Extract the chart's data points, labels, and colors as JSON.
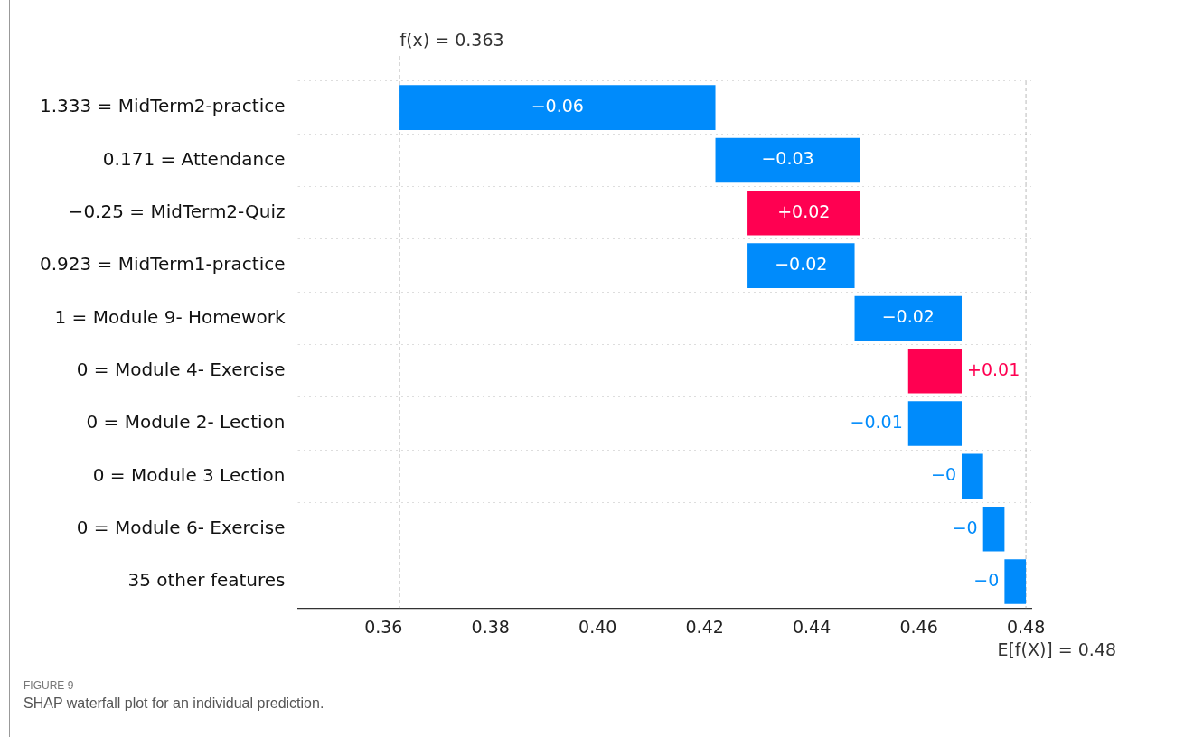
{
  "chart_data": {
    "type": "bar",
    "orientation": "horizontal",
    "categories": [
      "1.333 = MidTerm2-practice",
      "0.171 = Attendance",
      "−0.25 = MidTerm2-Quiz",
      "0.923 = MidTerm1-practice",
      "1 = Module 9- Homework",
      "0 = Module 4- Exercise",
      "0 = Module 2- Lection",
      "0 = Module 3 Lection",
      "0 = Module 6- Exercise",
      "35 other features"
    ],
    "values": [
      -0.059,
      -0.027,
      0.021,
      -0.02,
      -0.02,
      0.01,
      -0.01,
      -0.004,
      -0.004,
      -0.004
    ],
    "base": [
      0.422,
      0.449,
      0.428,
      0.448,
      0.468,
      0.458,
      0.468,
      0.472,
      0.476,
      0.48
    ],
    "colors": [
      "#008bfb",
      "#008bfb",
      "#ff0051",
      "#008bfb",
      "#008bfb",
      "#ff0051",
      "#008bfb",
      "#008bfb",
      "#008bfb",
      "#008bfb"
    ],
    "value_labels": [
      "−0.06",
      "−0.03",
      "+0.02",
      "−0.02",
      "−0.02",
      "+0.01",
      "−0.01",
      "−0",
      "−0",
      "−0"
    ],
    "xlim": [
      0.344,
      0.481
    ],
    "xticks": [
      {
        "value": 0.36,
        "label": "0.36"
      },
      {
        "value": 0.38,
        "label": "0.38"
      },
      {
        "value": 0.4,
        "label": "0.40"
      },
      {
        "value": 0.42,
        "label": "0.42"
      },
      {
        "value": 0.44,
        "label": "0.44"
      },
      {
        "value": 0.46,
        "label": "0.46"
      },
      {
        "value": 0.48,
        "label": "0.48"
      }
    ],
    "ref_lines": [
      {
        "axis": "x",
        "value": 0.363,
        "label": "f(x) = 0.363",
        "color": "#bbbbbb",
        "line_style": "dashed"
      },
      {
        "axis": "x",
        "value": 0.48,
        "label": "E[f(X)] = 0.48",
        "color": "#bbbbbb",
        "line_style": "dashed"
      }
    ],
    "grid": "y",
    "legend": false,
    "annotations": [
      "FIGURE 9",
      "SHAP waterfall plot for an individual prediction."
    ]
  }
}
